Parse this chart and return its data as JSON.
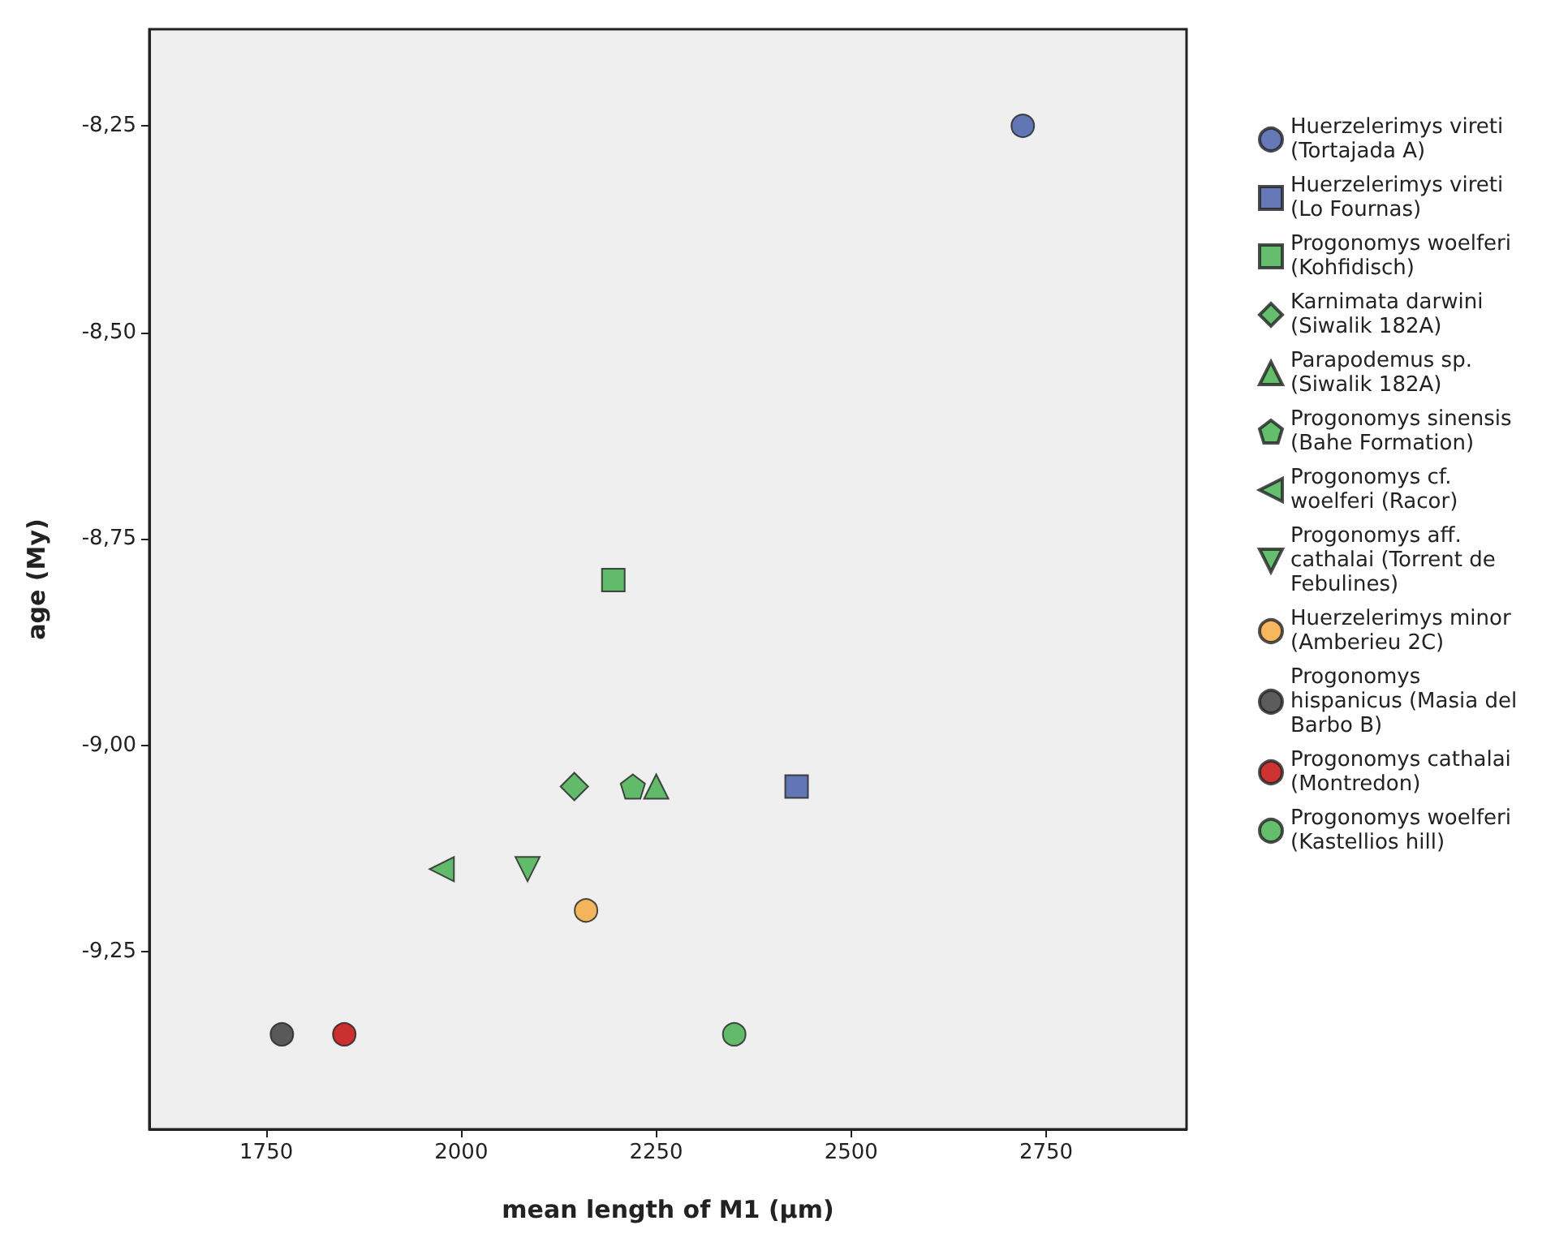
{
  "chart_data": {
    "type": "scatter",
    "xlabel": "mean length of M1 (µm)",
    "ylabel": "age (My)",
    "xlim": [
      1600,
      2930
    ],
    "xticks": [
      1750,
      2000,
      2250,
      2500,
      2750
    ],
    "ylim": [
      -9.465,
      -8.133
    ],
    "yticks": [
      {
        "value": -8.25,
        "label": "-8,25"
      },
      {
        "value": -8.5,
        "label": "-8,50"
      },
      {
        "value": -8.75,
        "label": "-8,75"
      },
      {
        "value": -9.0,
        "label": "-9,00"
      },
      {
        "value": -9.25,
        "label": "-9,25"
      }
    ],
    "grid": false,
    "legend": "right",
    "series": [
      {
        "name": "Huerzelerimys vireti (Tortajada A)",
        "color": "#3e58a8",
        "marker": "circle",
        "x": [
          2720
        ],
        "values": [
          -8.25
        ]
      },
      {
        "name": "Huerzelerimys vireti (Lo Fournas)",
        "color": "#3e58a8",
        "marker": "square",
        "x": [
          2430
        ],
        "values": [
          -9.05
        ]
      },
      {
        "name": "Progonomys woelferi (Kohfidisch)",
        "color": "#3fae49",
        "marker": "square",
        "x": [
          2195
        ],
        "values": [
          -8.8
        ]
      },
      {
        "name": "Karnimata darwini (Siwalik 182A)",
        "color": "#3fae49",
        "marker": "diamond",
        "x": [
          2145
        ],
        "values": [
          -9.05
        ]
      },
      {
        "name": "Parapodemus sp. (Siwalik 182A)",
        "color": "#3fae49",
        "marker": "triangle",
        "x": [
          2250
        ],
        "values": [
          -9.05
        ]
      },
      {
        "name": "Progonomys sinensis (Bahe Formation)",
        "color": "#3fae49",
        "x": [
          2220
        ],
        "values": [
          -9.05
        ]
      },
      {
        "name": "Progonomys cf. woelferi (Racor)",
        "color": "#3fae49",
        "marker": "triangle-left",
        "x": [
          1975
        ],
        "values": [
          -9.15
        ]
      },
      {
        "name": "Progonomys aff. cathalai (Torrent de Febulines)",
        "color": "#3fae49",
        "marker": "triangle-down",
        "x": [
          2085
        ],
        "values": [
          -9.15
        ]
      },
      {
        "name": "Huerzelerimys minor (Amberieu 2C)",
        "color": "#f4a536",
        "marker": "circle",
        "x": [
          2160
        ],
        "values": [
          -9.2
        ]
      },
      {
        "name": "Progonomys hispanicus (Masia del Barbo B)",
        "color": "#333333",
        "marker": "circle",
        "x": [
          1770
        ],
        "values": [
          -9.35
        ]
      },
      {
        "name": "Progonomys cathalai (Montredon)",
        "color": "#c00000",
        "marker": "circle",
        "x": [
          1850
        ],
        "values": [
          -9.35
        ]
      },
      {
        "name": "Progonomys woelferi (Kastellios hill)",
        "color": "#3fae49",
        "marker": "circle",
        "x": [
          2350
        ],
        "values": [
          -9.35
        ]
      }
    ]
  }
}
